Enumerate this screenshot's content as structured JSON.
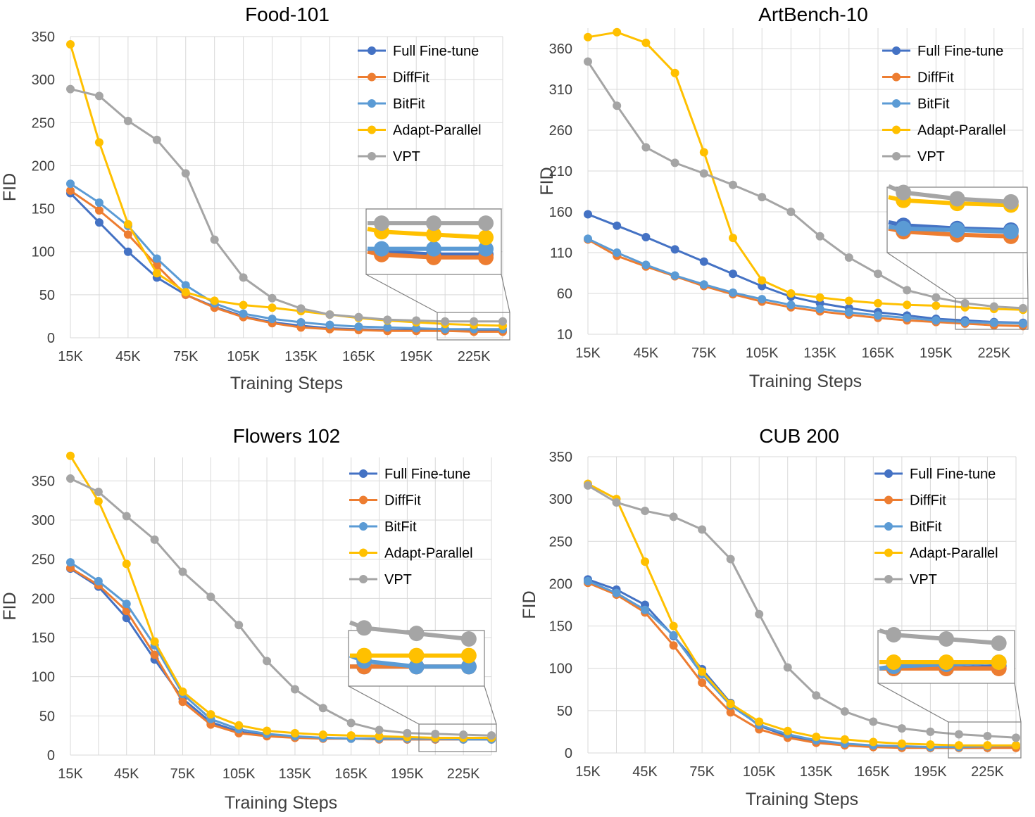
{
  "chart_data": [
    {
      "type": "line",
      "title": "Food-101",
      "xlabel": "Training Steps",
      "ylabel": "FID",
      "ylim": [
        0,
        350
      ],
      "yticks": [
        "0",
        "50",
        "100",
        "150",
        "200",
        "250",
        "300",
        "350"
      ],
      "x": [
        "15K",
        "30K",
        "45K",
        "60K",
        "75K",
        "90K",
        "105K",
        "120K",
        "135K",
        "150K",
        "165K",
        "180K",
        "195K",
        "210K",
        "225K",
        "240K"
      ],
      "xtick_labels": [
        "15K",
        "45K",
        "75K",
        "105K",
        "135K",
        "165K",
        "195K",
        "225K"
      ],
      "grid": true,
      "legend": "top-right",
      "inset": "zoomed view of last 3 points",
      "series": [
        {
          "name": "Full Fine-tune",
          "color": "#4472C4",
          "values": [
            168,
            134,
            100,
            70,
            50,
            36,
            25,
            18,
            14,
            11,
            10,
            9,
            9,
            9,
            8,
            8
          ]
        },
        {
          "name": "DiffFit",
          "color": "#ED7D31",
          "values": [
            171,
            148,
            120,
            84,
            50,
            35,
            24,
            17,
            12,
            10,
            9,
            8,
            8,
            8,
            7,
            7
          ]
        },
        {
          "name": "BitFit",
          "color": "#5B9BD5",
          "values": [
            179,
            157,
            130,
            92,
            61,
            40,
            28,
            22,
            18,
            15,
            13,
            12,
            11,
            10,
            10,
            10
          ]
        },
        {
          "name": "Adapt-Parallel",
          "color": "#FFC000",
          "values": [
            341,
            227,
            132,
            75,
            53,
            43,
            38,
            35,
            31,
            27,
            23,
            20,
            18,
            16,
            15,
            14
          ]
        },
        {
          "name": "VPT",
          "color": "#A5A5A5",
          "values": [
            289,
            281,
            252,
            230,
            191,
            114,
            70,
            46,
            34,
            27,
            24,
            21,
            20,
            19,
            19,
            19
          ]
        }
      ]
    },
    {
      "type": "line",
      "title": "ArtBench-10",
      "xlabel": "Training Steps",
      "ylabel": "FID",
      "ylim": [
        10,
        385
      ],
      "yticks": [
        "10",
        "60",
        "110",
        "160",
        "210",
        "260",
        "310",
        "360"
      ],
      "x": [
        "15K",
        "30K",
        "45K",
        "60K",
        "75K",
        "90K",
        "105K",
        "120K",
        "135K",
        "150K",
        "165K",
        "180K",
        "195K",
        "210K",
        "225K",
        "240K"
      ],
      "xtick_labels": [
        "15K",
        "45K",
        "75K",
        "105K",
        "135K",
        "165K",
        "195K",
        "225K"
      ],
      "grid": true,
      "legend": "top-right",
      "inset": "zoomed view of last 3 points",
      "series": [
        {
          "name": "Full Fine-tune",
          "color": "#4472C4",
          "values": [
            157,
            143,
            129,
            114,
            99,
            84,
            69,
            56,
            48,
            42,
            37,
            33,
            29,
            27,
            25,
            24
          ]
        },
        {
          "name": "DiffFit",
          "color": "#ED7D31",
          "values": [
            126,
            106,
            93,
            81,
            69,
            59,
            50,
            43,
            38,
            34,
            30,
            27,
            25,
            23,
            21,
            20
          ]
        },
        {
          "name": "BitFit",
          "color": "#5B9BD5",
          "values": [
            127,
            110,
            95,
            82,
            71,
            61,
            53,
            46,
            41,
            37,
            33,
            30,
            27,
            25,
            24,
            23
          ]
        },
        {
          "name": "Adapt-Parallel",
          "color": "#FFC000",
          "values": [
            374,
            380,
            367,
            330,
            233,
            128,
            76,
            60,
            55,
            51,
            48,
            46,
            45,
            43,
            41,
            40
          ]
        },
        {
          "name": "VPT",
          "color": "#A5A5A5",
          "values": [
            344,
            290,
            239,
            220,
            207,
            193,
            178,
            160,
            130,
            104,
            84,
            64,
            55,
            48,
            44,
            42
          ]
        }
      ]
    },
    {
      "type": "line",
      "title": "Flowers 102",
      "xlabel": "Training Steps",
      "ylabel": "FID",
      "ylim": [
        0,
        380
      ],
      "yticks": [
        "0",
        "50",
        "100",
        "150",
        "200",
        "250",
        "300",
        "350"
      ],
      "x": [
        "15K",
        "30K",
        "45K",
        "60K",
        "75K",
        "90K",
        "105K",
        "120K",
        "135K",
        "150K",
        "165K",
        "180K",
        "195K",
        "210K",
        "225K",
        "240K"
      ],
      "xtick_labels": [
        "15K",
        "45K",
        "75K",
        "105K",
        "135K",
        "165K",
        "195K",
        "225K"
      ],
      "grid": true,
      "legend": "top-right",
      "inset": "zoomed view of last 3 points",
      "series": [
        {
          "name": "Full Fine-tune",
          "color": "#4472C4",
          "values": [
            238,
            215,
            175,
            122,
            72,
            42,
            30,
            25,
            23,
            22,
            21,
            21,
            20,
            20,
            20,
            20
          ]
        },
        {
          "name": "DiffFit",
          "color": "#ED7D31",
          "values": [
            239,
            217,
            184,
            128,
            68,
            39,
            28,
            24,
            22,
            21,
            21,
            20,
            20,
            20,
            20,
            20
          ]
        },
        {
          "name": "BitFit",
          "color": "#5B9BD5",
          "values": [
            246,
            222,
            193,
            140,
            78,
            46,
            33,
            27,
            24,
            22,
            21,
            21,
            21,
            21,
            20,
            20
          ]
        },
        {
          "name": "Adapt-Parallel",
          "color": "#FFC000",
          "values": [
            382,
            324,
            244,
            145,
            81,
            52,
            38,
            31,
            28,
            26,
            25,
            24,
            23,
            22,
            22,
            22
          ]
        },
        {
          "name": "VPT",
          "color": "#A5A5A5",
          "values": [
            353,
            336,
            305,
            275,
            234,
            202,
            166,
            120,
            84,
            60,
            41,
            32,
            28,
            27,
            26,
            25
          ]
        }
      ]
    },
    {
      "type": "line",
      "title": "CUB 200",
      "xlabel": "Training Steps",
      "ylabel": "FID",
      "ylim": [
        0,
        350
      ],
      "yticks": [
        "0",
        "50",
        "100",
        "150",
        "200",
        "250",
        "300",
        "350"
      ],
      "x": [
        "15K",
        "30K",
        "45K",
        "60K",
        "75K",
        "90K",
        "105K",
        "120K",
        "135K",
        "150K",
        "165K",
        "180K",
        "195K",
        "210K",
        "225K",
        "240K"
      ],
      "xtick_labels": [
        "15K",
        "45K",
        "75K",
        "105K",
        "135K",
        "165K",
        "195K",
        "225K"
      ],
      "grid": true,
      "legend": "top-right",
      "inset": "zoomed view of last 3 points",
      "series": [
        {
          "name": "Full Fine-tune",
          "color": "#4472C4",
          "values": [
            205,
            193,
            175,
            138,
            99,
            59,
            32,
            20,
            14,
            10,
            8,
            7,
            6,
            6,
            6,
            7
          ]
        },
        {
          "name": "DiffFit",
          "color": "#ED7D31",
          "values": [
            201,
            187,
            166,
            127,
            83,
            48,
            28,
            18,
            12,
            9,
            7,
            6,
            6,
            6,
            6,
            6
          ]
        },
        {
          "name": "BitFit",
          "color": "#5B9BD5",
          "values": [
            203,
            189,
            169,
            139,
            93,
            56,
            33,
            22,
            15,
            11,
            9,
            8,
            7,
            7,
            8,
            9
          ]
        },
        {
          "name": "Adapt-Parallel",
          "color": "#FFC000",
          "values": [
            318,
            300,
            226,
            150,
            96,
            58,
            37,
            26,
            19,
            16,
            13,
            11,
            10,
            9,
            9,
            9
          ]
        },
        {
          "name": "VPT",
          "color": "#A5A5A5",
          "values": [
            316,
            296,
            286,
            279,
            264,
            229,
            164,
            101,
            68,
            49,
            37,
            29,
            25,
            22,
            20,
            18
          ]
        }
      ]
    }
  ]
}
